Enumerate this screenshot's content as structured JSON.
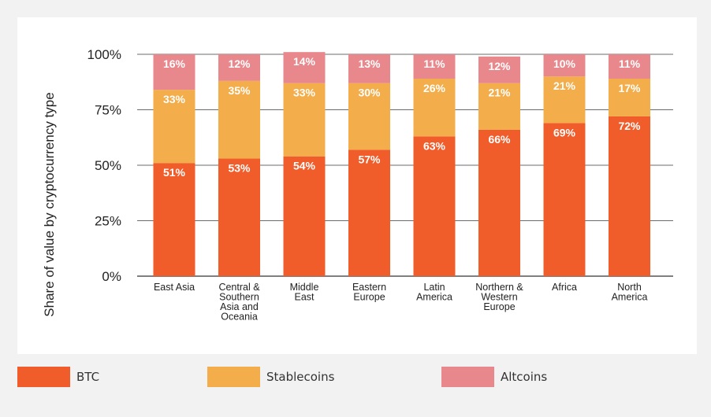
{
  "chart_data": {
    "type": "bar",
    "stacked": true,
    "ylabel": "Share of value by cryptocurrency type",
    "yticks": [
      "0%",
      "25%",
      "50%",
      "75%",
      "100%"
    ],
    "ylim": [
      0,
      100
    ],
    "grid": true,
    "legend_position": "bottom",
    "categories": [
      [
        "East Asia"
      ],
      [
        "Central &",
        "Southern",
        "Asia and",
        "Oceania"
      ],
      [
        "Middle",
        "East"
      ],
      [
        "Eastern",
        "Europe"
      ],
      [
        "Latin",
        "America"
      ],
      [
        "Northern &",
        "Western",
        "Europe"
      ],
      [
        "Africa"
      ],
      [
        "North",
        "America"
      ]
    ],
    "series": [
      {
        "name": "BTC",
        "color": "#f05d2b",
        "values": [
          51,
          53,
          54,
          57,
          63,
          66,
          69,
          72
        ],
        "labels": [
          "51%",
          "53%",
          "54%",
          "57%",
          "63%",
          "66%",
          "69%",
          "72%"
        ]
      },
      {
        "name": "Stablecoins",
        "color": "#f3ad4a",
        "values": [
          33,
          35,
          33,
          30,
          26,
          21,
          21,
          17
        ],
        "labels": [
          "33%",
          "35%",
          "33%",
          "30%",
          "26%",
          "21%",
          "21%",
          "17%"
        ]
      },
      {
        "name": "Altcoins",
        "color": "#e8878c",
        "values": [
          16,
          12,
          14,
          13,
          11,
          12,
          10,
          11
        ],
        "labels": [
          "16%",
          "12%",
          "14%",
          "13%",
          "11%",
          "12%",
          "10%",
          "11%"
        ]
      }
    ]
  },
  "legend": {
    "items": [
      {
        "label": "BTC",
        "color": "#f05d2b"
      },
      {
        "label": "Stablecoins",
        "color": "#f3ad4a"
      },
      {
        "label": "Altcoins",
        "color": "#e8878c"
      }
    ]
  }
}
